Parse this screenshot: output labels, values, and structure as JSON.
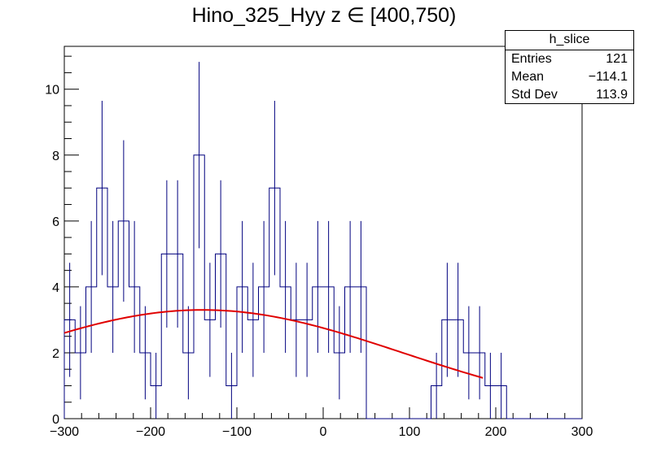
{
  "chart_data": {
    "type": "histogram",
    "title": "Hino_325_Hyy z  ∈ [400,750)",
    "xlabel": "",
    "ylabel": "",
    "xlim": [
      -300,
      300
    ],
    "ylim": [
      0,
      11.3
    ],
    "x_ticks": [
      -300,
      -200,
      -100,
      0,
      100,
      200,
      300
    ],
    "y_ticks": [
      0,
      2,
      4,
      6,
      8,
      10
    ],
    "grid": false,
    "bin_width": 12.5,
    "bin_edges_start": -300,
    "bin_values": [
      3,
      2,
      4,
      7,
      4,
      6,
      4,
      2,
      1,
      5,
      5,
      2,
      8,
      3,
      5,
      1,
      4,
      3,
      4,
      7,
      4,
      3,
      3,
      4,
      4,
      2,
      4,
      4,
      0,
      0,
      0,
      0,
      0,
      0,
      1,
      3,
      3,
      2,
      2,
      1,
      1,
      0,
      0,
      0,
      0,
      0,
      0,
      0
    ],
    "histogram_color": "#00007f",
    "fit": {
      "type": "gaussian",
      "color": "#e00000",
      "x_range": [
        -300,
        185
      ],
      "amplitude": 3.3,
      "mean": -140,
      "sigma": 232
    },
    "stats_box": {
      "name": "h_slice",
      "rows": [
        {
          "label": "Entries",
          "value": "121"
        },
        {
          "label": "Mean",
          "value": "−114.1"
        },
        {
          "label": "Std Dev",
          "value": "113.9"
        }
      ]
    }
  }
}
